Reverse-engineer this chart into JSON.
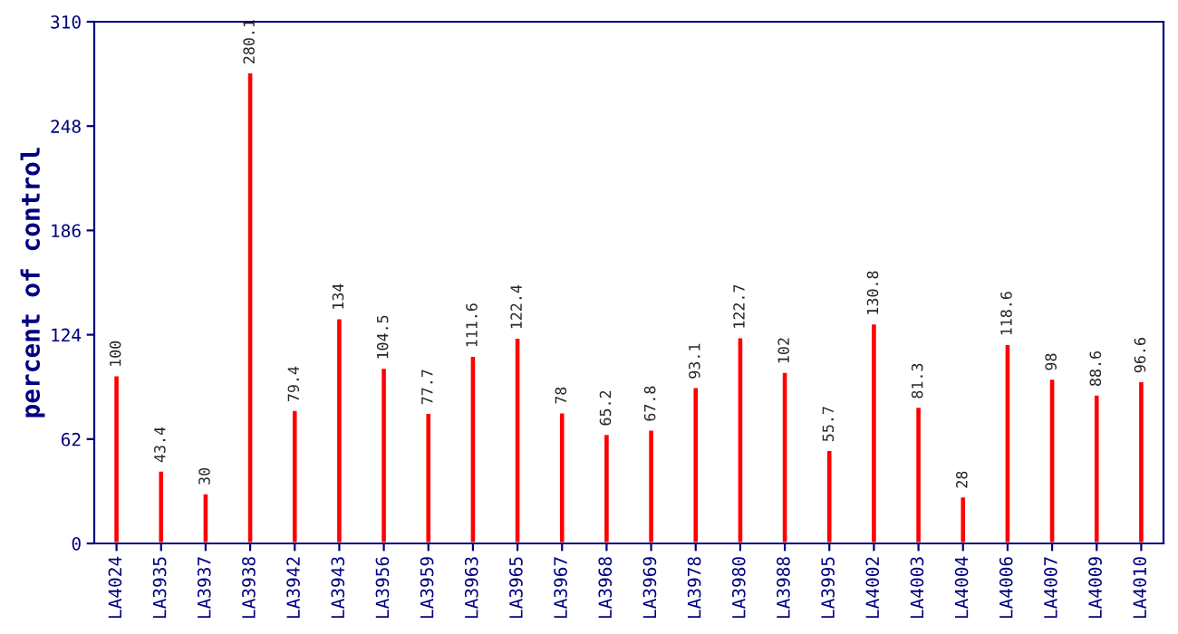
{
  "chart_data": {
    "type": "bar",
    "ylabel": "percent of control",
    "categories": [
      "LA4024",
      "LA3935",
      "LA3937",
      "LA3938",
      "LA3942",
      "LA3943",
      "LA3956",
      "LA3959",
      "LA3963",
      "LA3965",
      "LA3967",
      "LA3968",
      "LA3969",
      "LA3978",
      "LA3980",
      "LA3988",
      "LA3995",
      "LA4002",
      "LA4003",
      "LA4004",
      "LA4006",
      "LA4007",
      "LA4009",
      "LA4010"
    ],
    "values": [
      100,
      43.4,
      30,
      280.1,
      79.4,
      134,
      104.5,
      77.7,
      111.6,
      122.4,
      78,
      65.2,
      67.8,
      93.1,
      122.7,
      102,
      55.7,
      130.8,
      81.3,
      28,
      118.6,
      98,
      88.6,
      96.6
    ],
    "color": "#ff0000",
    "ylim": [
      0,
      310
    ],
    "yticks": [
      0,
      62,
      124,
      186,
      248,
      310
    ],
    "data_labels": true,
    "grid": false,
    "legend": false
  }
}
